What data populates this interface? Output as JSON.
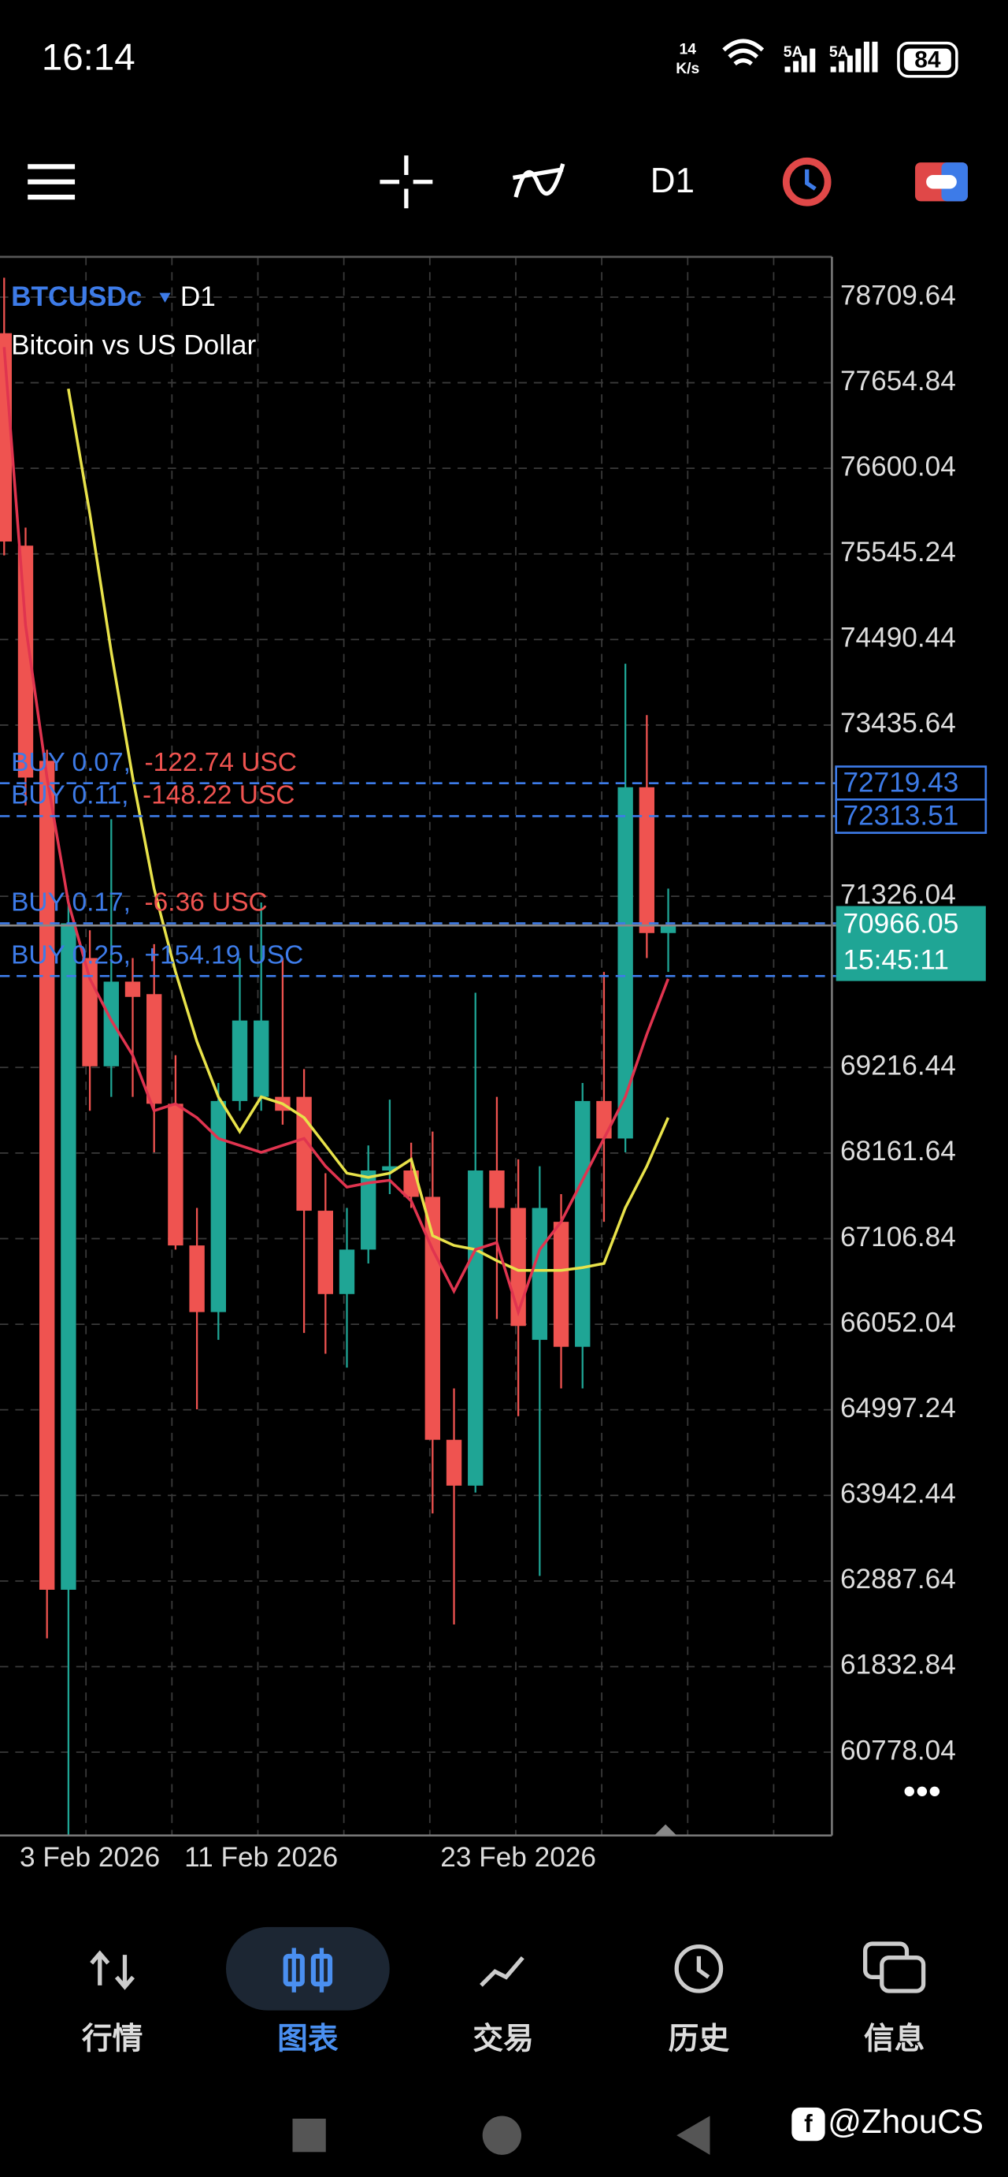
{
  "status_bar": {
    "time": "16:14",
    "speed": "14",
    "speed_unit": "K/s",
    "sim1": "5A",
    "sim2": "5A",
    "battery": "84"
  },
  "toolbar": {
    "timeframe": "D1"
  },
  "chart_data": {
    "type": "candlestick",
    "symbol": "BTCUSDc",
    "timeframe": "D1",
    "description": "Bitcoin vs US Dollar",
    "categories": [
      null,
      null,
      null,
      null,
      "3 Feb 2026",
      null,
      null,
      null,
      null,
      null,
      null,
      null,
      "11 Feb 2026",
      null,
      null,
      null,
      null,
      null,
      null,
      null,
      null,
      null,
      null,
      null,
      "23 Feb 2026",
      null,
      null,
      null,
      null,
      null,
      null,
      null
    ],
    "candles": [
      {
        "open": 78265,
        "high": 78949,
        "low": 75527,
        "close": 75698
      },
      {
        "open": 75647,
        "high": 75869,
        "low": 72447,
        "close": 72789
      },
      {
        "open": 72995,
        "high": 73132,
        "low": 62181,
        "close": 62780
      },
      {
        "open": 62780,
        "high": 71249,
        "low": 59752,
        "close": 70993
      },
      {
        "open": 70565,
        "high": 70907,
        "low": 68683,
        "close": 69231
      },
      {
        "open": 69231,
        "high": 72276,
        "low": 68854,
        "close": 70274
      },
      {
        "open": 70274,
        "high": 70565,
        "low": 68854,
        "close": 70086
      },
      {
        "open": 70120,
        "high": 70736,
        "low": 68170,
        "close": 68769
      },
      {
        "open": 68769,
        "high": 69367,
        "low": 66972,
        "close": 67023
      },
      {
        "open": 67023,
        "high": 67485,
        "low": 65004,
        "close": 66202
      },
      {
        "open": 66202,
        "high": 69025,
        "low": 65860,
        "close": 68803
      },
      {
        "open": 68803,
        "high": 70565,
        "low": 68683,
        "close": 69795
      },
      {
        "open": 68854,
        "high": 71249,
        "low": 68683,
        "close": 69795
      },
      {
        "open": 68854,
        "high": 70565,
        "low": 68512,
        "close": 68683
      },
      {
        "open": 68854,
        "high": 69196,
        "low": 65945,
        "close": 67451
      },
      {
        "open": 67451,
        "high": 67913,
        "low": 65689,
        "close": 66424
      },
      {
        "open": 66424,
        "high": 67485,
        "low": 65518,
        "close": 66972
      },
      {
        "open": 66972,
        "high": 68255,
        "low": 66801,
        "close": 67947
      },
      {
        "open": 67947,
        "high": 68820,
        "low": 67656,
        "close": 67999
      },
      {
        "open": 67947,
        "high": 68289,
        "low": 67485,
        "close": 67622
      },
      {
        "open": 67622,
        "high": 68426,
        "low": 63721,
        "close": 64628
      },
      {
        "open": 64628,
        "high": 65261,
        "low": 62352,
        "close": 64063
      },
      {
        "open": 64063,
        "high": 70137,
        "low": 63978,
        "close": 67947
      },
      {
        "open": 67947,
        "high": 68854,
        "low": 66116,
        "close": 67485
      },
      {
        "open": 67485,
        "high": 68084,
        "low": 64919,
        "close": 66031
      },
      {
        "open": 65860,
        "high": 67999,
        "low": 62951,
        "close": 67485
      },
      {
        "open": 67314,
        "high": 67656,
        "low": 65261,
        "close": 65774
      },
      {
        "open": 65774,
        "high": 69025,
        "low": 65261,
        "close": 68803
      },
      {
        "open": 68803,
        "high": 70394,
        "low": 67314,
        "close": 68341
      },
      {
        "open": 68341,
        "high": 74192,
        "low": 68170,
        "close": 72670
      },
      {
        "open": 72670,
        "high": 73559,
        "low": 70565,
        "close": 70873
      },
      {
        "open": 70873,
        "high": 71421,
        "low": 70394,
        "close": 70966.05
      }
    ],
    "up_color": "#1fa595",
    "down_color": "#ef5350",
    "lines": [
      {
        "color": "#e8e24a",
        "values": [
          null,
          null,
          null,
          77580,
          76040,
          74329,
          72789,
          71421,
          70394,
          69538,
          68854,
          68426,
          68854,
          68769,
          68597,
          68255,
          67913,
          67862,
          67913,
          68084,
          67143,
          67023,
          66972,
          66835,
          66715,
          66715,
          66715,
          66750,
          66801,
          67485,
          67999,
          68597
        ]
      },
      {
        "color": "#e0344f",
        "values": [
          78093,
          74671,
          72789,
          71249,
          70308,
          69795,
          69367,
          68683,
          68769,
          68597,
          68341,
          68255,
          68170,
          68255,
          68341,
          67999,
          67742,
          67793,
          67827,
          67571,
          66972,
          66459,
          66972,
          67058,
          66202,
          66972,
          67314,
          67827,
          68341,
          68854,
          69624,
          70308
        ]
      }
    ],
    "ylim": [
      59752,
      79206
    ],
    "yticks": [
      78709.64,
      77654.84,
      76600.04,
      75545.24,
      74490.44,
      73435.64,
      71326.04,
      69216.44,
      68161.64,
      67106.84,
      66052.04,
      64997.24,
      63942.44,
      62887.64,
      61832.84,
      60778.04
    ],
    "orders": [
      {
        "text": "BUY 0.07,",
        "pnl": "-122.74 USC",
        "pnl_color": "#ef5350",
        "price": 72719.43,
        "price_tag": true
      },
      {
        "text": "BUY 0.11,",
        "pnl": "-148.22 USC",
        "pnl_color": "#ef5350",
        "price": 72313.51,
        "price_tag": true
      },
      {
        "text": "BUY 0.17,",
        "pnl": "-6.36 USC",
        "pnl_color": "#ef5350",
        "price": 70993,
        "price_tag": false
      },
      {
        "text": "BUY 0.25,",
        "pnl": "+154.19 USC",
        "pnl_color": "#3d7be8",
        "price": 70343,
        "price_tag": false
      }
    ],
    "current_price": 70966.05,
    "countdown": "15:45:11"
  },
  "nav": {
    "items": [
      "行情",
      "图表",
      "交易",
      "历史",
      "信息"
    ],
    "active": 1
  },
  "watermark": "@ZhouCS"
}
